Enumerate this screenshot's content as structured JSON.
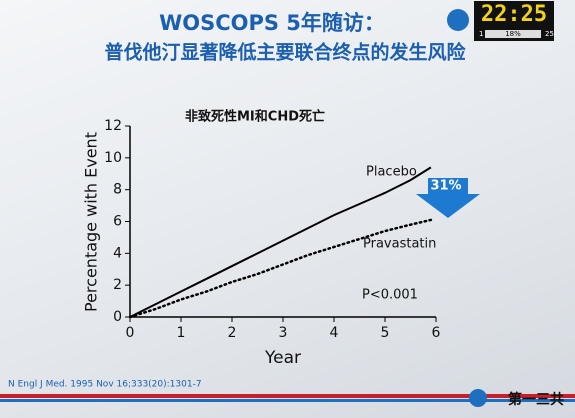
{
  "header": {
    "title_line1": "WOSCOPS 5年随访：",
    "title_line2": "普伐他汀显著降低主要联合终点的发生风险"
  },
  "clock": {
    "time": "22:25",
    "left": "1",
    "percent": "18%",
    "right": "25"
  },
  "chart_data": {
    "type": "line",
    "subtitle": "非致死性MI和CHD死亡",
    "x_label": "Year",
    "y_label": "Percentage with Event",
    "x": [
      0,
      0.5,
      1,
      1.5,
      2,
      2.5,
      3,
      3.5,
      4,
      4.5,
      5,
      5.5,
      5.9
    ],
    "series": [
      {
        "name": "Placebo",
        "color": "#000000",
        "dash": "solid",
        "values": [
          0,
          0.8,
          1.6,
          2.4,
          3.2,
          4.0,
          4.8,
          5.6,
          6.4,
          7.1,
          7.8,
          8.6,
          9.4
        ]
      },
      {
        "name": "Pravastatin",
        "color": "#000000",
        "dash": "dotted",
        "values": [
          0,
          0.5,
          1.1,
          1.6,
          2.2,
          2.7,
          3.3,
          3.9,
          4.4,
          4.9,
          5.4,
          5.8,
          6.1
        ]
      }
    ],
    "xlim": [
      0,
      6
    ],
    "xticks": [
      0,
      1,
      2,
      3,
      4,
      5,
      6
    ],
    "ylim": [
      0,
      12
    ],
    "yticks": [
      0,
      2,
      4,
      6,
      8,
      10,
      12
    ],
    "grid": false,
    "annotations": [
      "P<0.001",
      "31%"
    ]
  },
  "footer": {
    "citation": "N Engl J Med. 1995 Nov 16;333(20):1301-7",
    "company": "第一三共"
  }
}
